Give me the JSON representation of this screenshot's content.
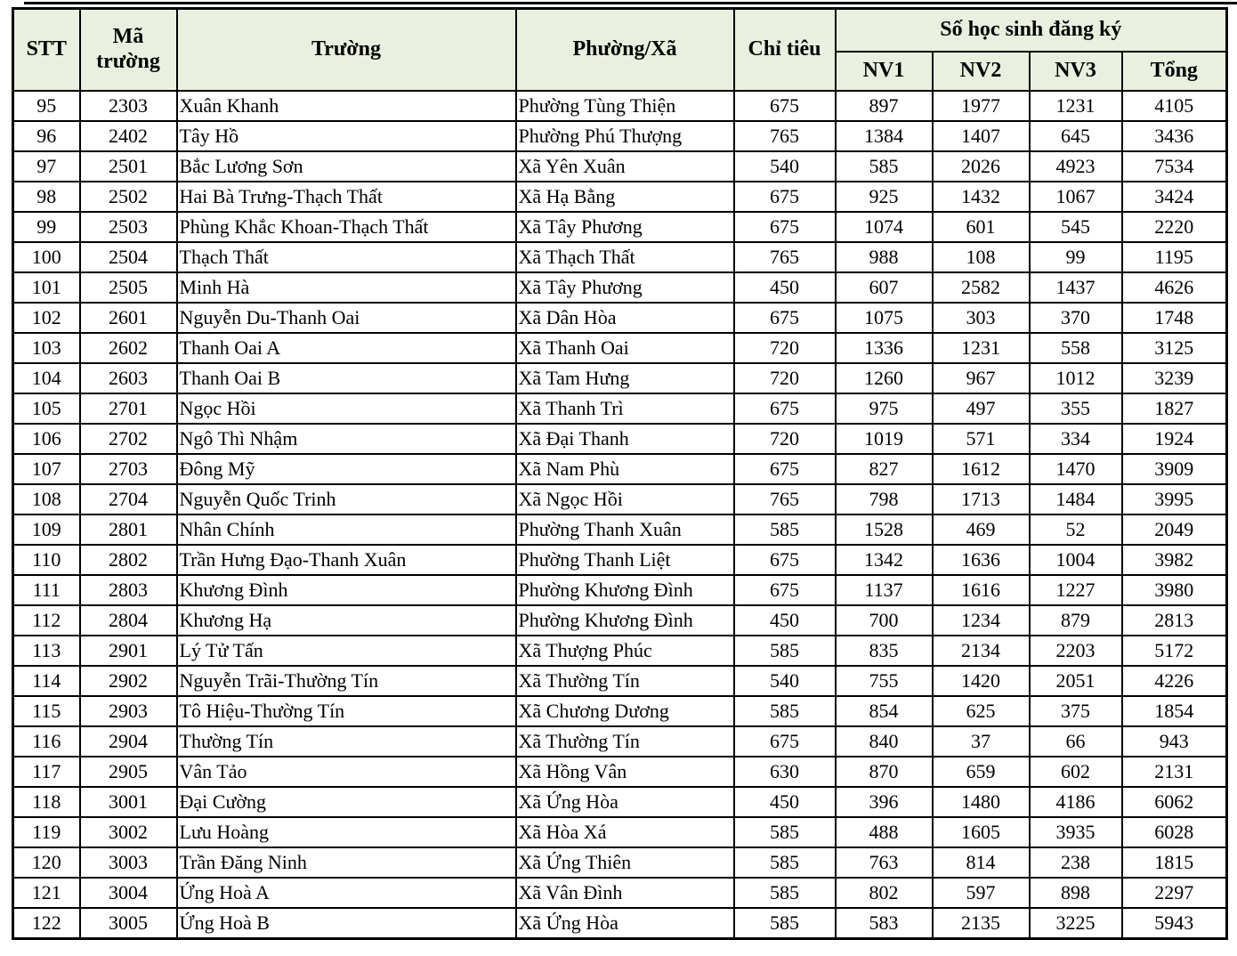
{
  "colors": {
    "header_bg": "#e9f0df",
    "border": "#000000",
    "text": "#000000",
    "page_bg": "#ffffff"
  },
  "header": {
    "stt": "STT",
    "ma_truong": "Mã trường",
    "truong": "Trường",
    "phuong_xa": "Phường/Xã",
    "chi_tieu": "Chỉ tiêu",
    "so_hoc_sinh": "Số học sinh đăng ký",
    "nv1": "NV1",
    "nv2": "NV2",
    "nv3": "NV3",
    "tong": "Tổng"
  },
  "chart_data": {
    "type": "table",
    "columns": [
      "STT",
      "Mã trường",
      "Trường",
      "Phường/Xã",
      "Chỉ tiêu",
      "NV1",
      "NV2",
      "NV3",
      "Tổng"
    ],
    "rows": [
      [
        "95",
        "2303",
        "Xuân Khanh",
        "Phường Tùng Thiện",
        "675",
        "897",
        "1977",
        "1231",
        "4105"
      ],
      [
        "96",
        "2402",
        "Tây Hồ",
        "Phường Phú Thượng",
        "765",
        "1384",
        "1407",
        "645",
        "3436"
      ],
      [
        "97",
        "2501",
        "Bắc Lương Sơn",
        "Xã Yên Xuân",
        "540",
        "585",
        "2026",
        "4923",
        "7534"
      ],
      [
        "98",
        "2502",
        "Hai Bà Trưng-Thạch Thất",
        "Xã Hạ Bằng",
        "675",
        "925",
        "1432",
        "1067",
        "3424"
      ],
      [
        "99",
        "2503",
        "Phùng Khắc Khoan-Thạch Thất",
        "Xã Tây Phương",
        "675",
        "1074",
        "601",
        "545",
        "2220"
      ],
      [
        "100",
        "2504",
        "Thạch Thất",
        "Xã Thạch Thất",
        "765",
        "988",
        "108",
        "99",
        "1195"
      ],
      [
        "101",
        "2505",
        "Minh Hà",
        "Xã Tây Phương",
        "450",
        "607",
        "2582",
        "1437",
        "4626"
      ],
      [
        "102",
        "2601",
        "Nguyễn Du-Thanh Oai",
        "Xã Dân Hòa",
        "675",
        "1075",
        "303",
        "370",
        "1748"
      ],
      [
        "103",
        "2602",
        "Thanh Oai A",
        "Xã Thanh Oai",
        "720",
        "1336",
        "1231",
        "558",
        "3125"
      ],
      [
        "104",
        "2603",
        "Thanh Oai B",
        "Xã Tam Hưng",
        "720",
        "1260",
        "967",
        "1012",
        "3239"
      ],
      [
        "105",
        "2701",
        "Ngọc Hồi",
        "Xã Thanh Trì",
        "675",
        "975",
        "497",
        "355",
        "1827"
      ],
      [
        "106",
        "2702",
        "Ngô Thì Nhậm",
        "Xã Đại Thanh",
        "720",
        "1019",
        "571",
        "334",
        "1924"
      ],
      [
        "107",
        "2703",
        "Đông Mỹ",
        "Xã Nam Phù",
        "675",
        "827",
        "1612",
        "1470",
        "3909"
      ],
      [
        "108",
        "2704",
        "Nguyễn Quốc Trinh",
        "Xã Ngọc Hồi",
        "765",
        "798",
        "1713",
        "1484",
        "3995"
      ],
      [
        "109",
        "2801",
        "Nhân Chính",
        "Phường Thanh Xuân",
        "585",
        "1528",
        "469",
        "52",
        "2049"
      ],
      [
        "110",
        "2802",
        "Trần Hưng Đạo-Thanh Xuân",
        "Phường Thanh Liệt",
        "675",
        "1342",
        "1636",
        "1004",
        "3982"
      ],
      [
        "111",
        "2803",
        "Khương Đình",
        "Phường Khương Đình",
        "675",
        "1137",
        "1616",
        "1227",
        "3980"
      ],
      [
        "112",
        "2804",
        "Khương Hạ",
        "Phường Khương Đình",
        "450",
        "700",
        "1234",
        "879",
        "2813"
      ],
      [
        "113",
        "2901",
        "Lý Tử Tấn",
        "Xã Thượng Phúc",
        "585",
        "835",
        "2134",
        "2203",
        "5172"
      ],
      [
        "114",
        "2902",
        "Nguyễn Trãi-Thường Tín",
        "Xã Thường Tín",
        "540",
        "755",
        "1420",
        "2051",
        "4226"
      ],
      [
        "115",
        "2903",
        "Tô Hiệu-Thường Tín",
        "Xã Chương Dương",
        "585",
        "854",
        "625",
        "375",
        "1854"
      ],
      [
        "116",
        "2904",
        "Thường Tín",
        "Xã Thường Tín",
        "675",
        "840",
        "37",
        "66",
        "943"
      ],
      [
        "117",
        "2905",
        "Vân Tảo",
        "Xã Hồng Vân",
        "630",
        "870",
        "659",
        "602",
        "2131"
      ],
      [
        "118",
        "3001",
        "Đại Cường",
        "Xã Ứng Hòa",
        "450",
        "396",
        "1480",
        "4186",
        "6062"
      ],
      [
        "119",
        "3002",
        "Lưu Hoàng",
        "Xã Hòa Xá",
        "585",
        "488",
        "1605",
        "3935",
        "6028"
      ],
      [
        "120",
        "3003",
        "Trần Đăng Ninh",
        "Xã Ứng Thiên",
        "585",
        "763",
        "814",
        "238",
        "1815"
      ],
      [
        "121",
        "3004",
        "Ứng Hoà A",
        "Xã Vân Đình",
        "585",
        "802",
        "597",
        "898",
        "2297"
      ],
      [
        "122",
        "3005",
        "Ứng Hoà B",
        "Xã Ứng Hòa",
        "585",
        "583",
        "2135",
        "3225",
        "5943"
      ]
    ]
  }
}
